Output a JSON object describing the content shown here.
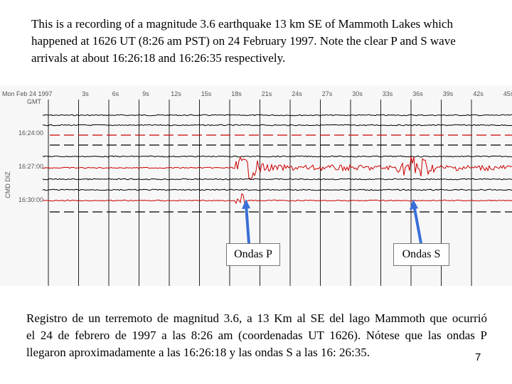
{
  "header": {
    "lines": [
      "This is a recording of a magnitude 3.6 earthquake 13 km SE of Mammoth Lakes which",
      "happened at 1626 UT (8:26 am PST) on 24 February 1997. Note the clear P and S wave",
      "arrivals at about 16:26:18 and 16:26:35 respectively."
    ]
  },
  "seismogram": {
    "date_label": "Mon Feb 24 1997",
    "timezone_label": "GMT",
    "station_label": "CMD DIZ",
    "time_labels": [
      "16:24:00",
      "16:27:00",
      "16:30:00"
    ],
    "second_labels": [
      "3s",
      "6s",
      "9s",
      "12s",
      "15s",
      "18s",
      "21s",
      "24s",
      "27s",
      "30s",
      "33s",
      "36s",
      "39s",
      "42s",
      "45s"
    ]
  },
  "annotations": [
    {
      "label": "Ondas P"
    },
    {
      "label": "Ondas S"
    }
  ],
  "caption": {
    "lines": [
      "Registro de un terremoto de magnitud 3.6,  a 13 Km al SE del lago Mammoth que ocurrió",
      "el 24 de febrero de 1997 a las 8:26 am (coordenadas UT 1626). Nótese que las ondas P",
      "llegaron aproximadamente a las 16:26:18 y las ondas S a las 16: 26:35."
    ]
  },
  "page_number": "7"
}
